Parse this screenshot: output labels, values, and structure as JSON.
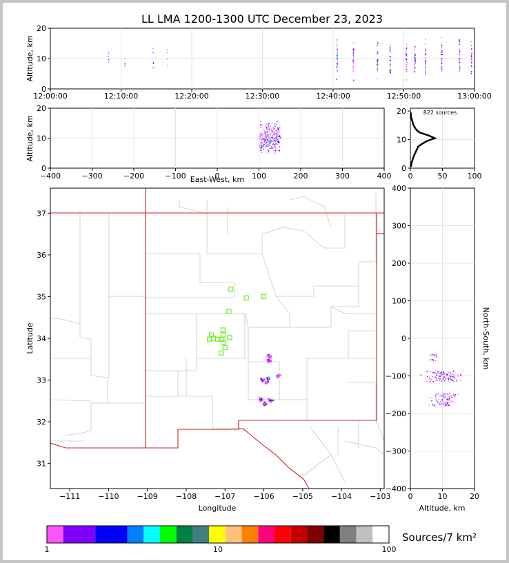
{
  "chart_data": [
    {
      "panel": "time-height",
      "type": "scatter",
      "title": "LL LMA 1200-1300 UTC December 23, 2023",
      "ylabel": "Altitude, km",
      "ylim": [
        0,
        20
      ],
      "xlim": [
        "12:00:00",
        "13:00:00"
      ],
      "x_ticks": [
        "12:00:00",
        "12:10:00",
        "12:20:00",
        "12:30:00",
        "12:40:00",
        "12:50:00",
        "13:00:00"
      ],
      "y_ticks": [
        "0",
        "10",
        "20"
      ],
      "source_columns_minutes": [
        8.2,
        10.5,
        14.5,
        16.5,
        40.5,
        42.8,
        46.2,
        48,
        50.3,
        51.5,
        53,
        55.3,
        57.8,
        59.5
      ],
      "grid": true
    },
    {
      "panel": "east-west-altitude",
      "type": "scatter",
      "xlabel": "East-West, km",
      "ylabel": "Altitude, km",
      "xlim": [
        -400,
        400
      ],
      "ylim": [
        0,
        20
      ],
      "x_ticks": [
        "−400",
        "−300",
        "−200",
        "−100",
        "0",
        "100",
        "200",
        "300",
        "400"
      ],
      "y_ticks": [
        "0",
        "10",
        "20"
      ],
      "cluster_x_range_km": [
        100,
        150
      ],
      "cluster_alt_range_km": [
        2,
        19
      ],
      "grid": true
    },
    {
      "panel": "altitude-histogram",
      "type": "line",
      "annotation": "822 sources",
      "xlim": [
        0,
        100
      ],
      "ylim": [
        0,
        21
      ],
      "x_ticks": [
        "0",
        "50",
        "100"
      ],
      "y_ticks": [
        "0",
        "10",
        "20"
      ],
      "profile": [
        {
          "alt": 0.5,
          "count": 1
        },
        {
          "alt": 2,
          "count": 2
        },
        {
          "alt": 4,
          "count": 5
        },
        {
          "alt": 5.5,
          "count": 8
        },
        {
          "alt": 6.5,
          "count": 10
        },
        {
          "alt": 7.5,
          "count": 12
        },
        {
          "alt": 8.5,
          "count": 18
        },
        {
          "alt": 9.5,
          "count": 26
        },
        {
          "alt": 10.5,
          "count": 38
        },
        {
          "alt": 11.5,
          "count": 28
        },
        {
          "alt": 12.5,
          "count": 14
        },
        {
          "alt": 13.5,
          "count": 9
        },
        {
          "alt": 15,
          "count": 5
        },
        {
          "alt": 16.5,
          "count": 3
        },
        {
          "alt": 18,
          "count": 1
        },
        {
          "alt": 19.5,
          "count": 1
        }
      ]
    },
    {
      "panel": "plan-view-map",
      "type": "scatter",
      "xlabel": "Longitude",
      "ylabel": "Latitude",
      "xlim": [
        -111.5,
        -102.9
      ],
      "ylim": [
        30.4,
        37.6
      ],
      "x_ticks": [
        "−111",
        "−110",
        "−109",
        "−108",
        "−107",
        "−106",
        "−105",
        "−104",
        "−103"
      ],
      "y_ticks": [
        "31",
        "32",
        "33",
        "34",
        "35",
        "36",
        "37"
      ],
      "stations": [
        {
          "lon": -106.85,
          "lat": 35.18
        },
        {
          "lon": -106.45,
          "lat": 34.97
        },
        {
          "lon": -106.0,
          "lat": 35.0
        },
        {
          "lon": -106.9,
          "lat": 34.65
        },
        {
          "lon": -107.05,
          "lat": 34.2
        },
        {
          "lon": -107.35,
          "lat": 34.08
        },
        {
          "lon": -107.05,
          "lat": 34.08
        },
        {
          "lon": -107.4,
          "lat": 33.98
        },
        {
          "lon": -107.3,
          "lat": 34.0
        },
        {
          "lon": -107.2,
          "lat": 33.98
        },
        {
          "lon": -107.08,
          "lat": 33.98
        },
        {
          "lon": -106.88,
          "lat": 34.02
        },
        {
          "lon": -107.05,
          "lat": 33.9
        },
        {
          "lon": -107.0,
          "lat": 33.78
        },
        {
          "lon": -107.1,
          "lat": 33.65
        }
      ],
      "source_clusters": [
        {
          "lon": -105.88,
          "lat": 33.58
        },
        {
          "lon": -105.9,
          "lat": 33.48
        },
        {
          "lon": -105.65,
          "lat": 33.12
        },
        {
          "lon": -105.9,
          "lat": 33.05
        },
        {
          "lon": -105.95,
          "lat": 32.95
        },
        {
          "lon": -106.05,
          "lat": 33.02
        },
        {
          "lon": -106.1,
          "lat": 32.55
        },
        {
          "lon": -106.0,
          "lat": 32.45
        },
        {
          "lon": -105.85,
          "lat": 32.52
        }
      ]
    },
    {
      "panel": "north-south-altitude",
      "type": "scatter",
      "xlabel": "Altitude, km",
      "ylabel": "North-South, km",
      "xlim": [
        0,
        20
      ],
      "ylim": [
        -400,
        400
      ],
      "x_ticks": [
        "0",
        "10",
        "20"
      ],
      "y_ticks": [
        "−400",
        "−300",
        "−200",
        "−100",
        "0",
        "100",
        "200",
        "300",
        "400"
      ],
      "clusters": [
        {
          "ns_range": [
            -115,
            -85
          ],
          "alt_range": [
            2,
            19
          ]
        },
        {
          "ns_range": [
            -180,
            -145
          ],
          "alt_range": [
            4,
            16
          ]
        },
        {
          "ns_range": [
            -60,
            -40
          ],
          "alt_range": [
            5,
            9
          ]
        }
      ],
      "grid": true
    }
  ],
  "colorbar": {
    "label": "Sources/7 km²",
    "tick_labels": [
      "1",
      "10",
      "100"
    ],
    "colors": [
      "#ff55ff",
      "#8000ff",
      "#0000ff",
      "#0080ff",
      "#00ffff",
      "#00ff00",
      "#008040",
      "#408080",
      "#ffff00",
      "#ffc080",
      "#ff8000",
      "#ff0080",
      "#ff0000",
      "#c00000",
      "#800000",
      "#000000",
      "#808080",
      "#c0c0c0",
      "#ffffff"
    ]
  }
}
